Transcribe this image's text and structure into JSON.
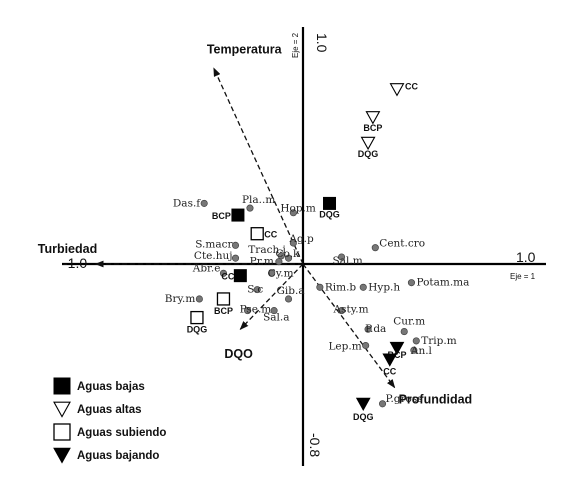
{
  "chart_data": {
    "type": "scatter",
    "subtype": "ordination-biplot",
    "axes": {
      "x": {
        "name": "Eje = 1",
        "min": -1.0,
        "max": 1.0,
        "min_label": "-1.0",
        "max_label": "1.0"
      },
      "y": {
        "name": "Eje = 2",
        "min": -0.8,
        "max": 1.0,
        "min_label": "-0.8",
        "max_label": "1.0"
      }
    },
    "grid": false,
    "env_variables": [
      {
        "name": "Temperatura",
        "x": -0.37,
        "y": 0.84
      },
      {
        "name": "Turbiedad",
        "x": -0.86,
        "y": 0.0
      },
      {
        "name": "DQO",
        "x": -0.26,
        "y": -0.28
      },
      {
        "name": "Profundidad",
        "x": 0.38,
        "y": -0.53
      }
    ],
    "species": [
      {
        "name": "Pla..m",
        "x": -0.22,
        "y": 0.24
      },
      {
        "name": "Das.f",
        "x": -0.41,
        "y": 0.26
      },
      {
        "name": "Hop.m",
        "x": -0.04,
        "y": 0.22
      },
      {
        "name": "S.macr",
        "x": -0.28,
        "y": 0.08
      },
      {
        "name": "Ag.p",
        "x": -0.04,
        "y": 0.09
      },
      {
        "name": "Trach.i",
        "x": -0.09,
        "y": 0.035
      },
      {
        "name": "Co.k",
        "x": -0.06,
        "y": 0.025
      },
      {
        "name": "Cte.huj",
        "x": -0.28,
        "y": 0.025
      },
      {
        "name": "Pr.m",
        "x": -0.1,
        "y": 0.01
      },
      {
        "name": "Abr.e",
        "x": -0.33,
        "y": -0.04
      },
      {
        "name": "Cy.m",
        "x": -0.13,
        "y": -0.04
      },
      {
        "name": "S.c",
        "x": -0.19,
        "y": -0.11
      },
      {
        "name": "Bry.m",
        "x": -0.43,
        "y": -0.15
      },
      {
        "name": "Pse.m",
        "x": -0.23,
        "y": -0.2
      },
      {
        "name": "Sal.a",
        "x": -0.12,
        "y": -0.2
      },
      {
        "name": "Gib.a",
        "x": -0.06,
        "y": -0.15
      },
      {
        "name": "Sal.m",
        "x": 0.16,
        "y": 0.03
      },
      {
        "name": "Cent.cro",
        "x": 0.3,
        "y": 0.07
      },
      {
        "name": "Rim.b",
        "x": 0.07,
        "y": -0.1
      },
      {
        "name": "Hyp.h",
        "x": 0.25,
        "y": -0.1
      },
      {
        "name": "Potam.ma",
        "x": 0.45,
        "y": -0.08
      },
      {
        "name": "Asty.m",
        "x": 0.16,
        "y": -0.2
      },
      {
        "name": "Cur.m",
        "x": 0.42,
        "y": -0.29
      },
      {
        "name": "Trip.m",
        "x": 0.47,
        "y": -0.33
      },
      {
        "name": "An.l",
        "x": 0.46,
        "y": -0.37
      },
      {
        "name": "P.da",
        "x": 0.27,
        "y": -0.28
      },
      {
        "name": "Lep.m",
        "x": 0.26,
        "y": -0.35
      },
      {
        "name": "P.gross",
        "x": 0.33,
        "y": -0.6
      }
    ],
    "sites": [
      {
        "name": "CC",
        "group": "Aguas altas",
        "x": 0.39,
        "y": 0.75
      },
      {
        "name": "BCP",
        "group": "Aguas altas",
        "x": 0.29,
        "y": 0.63
      },
      {
        "name": "DQG",
        "group": "Aguas altas",
        "x": 0.27,
        "y": 0.52
      },
      {
        "name": "DQG",
        "group": "Aguas bajas",
        "x": 0.11,
        "y": 0.26
      },
      {
        "name": "BCP",
        "group": "Aguas bajas",
        "x": -0.27,
        "y": 0.21
      },
      {
        "name": "CC",
        "group": "Aguas bajas",
        "x": -0.26,
        "y": -0.05
      },
      {
        "name": "CC",
        "group": "Aguas subiendo",
        "x": -0.19,
        "y": 0.13
      },
      {
        "name": "BCP",
        "group": "Aguas subiendo",
        "x": -0.33,
        "y": -0.15
      },
      {
        "name": "DQG",
        "group": "Aguas subiendo",
        "x": -0.44,
        "y": -0.23
      },
      {
        "name": "BCP",
        "group": "Aguas bajando",
        "x": 0.39,
        "y": -0.36
      },
      {
        "name": "CC",
        "group": "Aguas bajando",
        "x": 0.36,
        "y": -0.41
      },
      {
        "name": "DQG",
        "group": "Aguas bajando",
        "x": 0.25,
        "y": -0.6
      }
    ],
    "legend": {
      "placement": "bottom-left",
      "items": [
        {
          "label": "Aguas bajas",
          "symbol": "filled-square"
        },
        {
          "label": "Aguas altas",
          "symbol": "open-triangle-down"
        },
        {
          "label": "Aguas subiendo",
          "symbol": "open-square"
        },
        {
          "label": "Aguas bajando",
          "symbol": "filled-triangle-down"
        }
      ]
    }
  }
}
